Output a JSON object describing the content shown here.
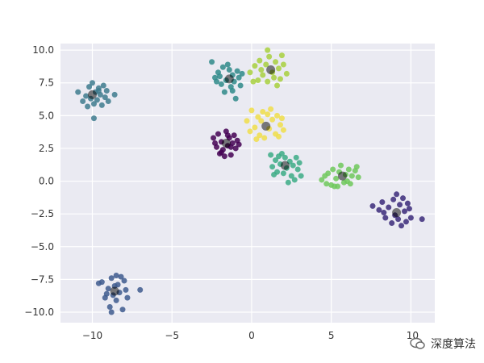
{
  "chart_data": {
    "type": "scatter",
    "title": "",
    "xlabel": "",
    "ylabel": "",
    "xlim": [
      -12,
      11.5
    ],
    "ylim": [
      -10.8,
      10.5
    ],
    "grid": true,
    "x_ticks": [
      -10,
      -5,
      0,
      5,
      10
    ],
    "y_ticks": [
      -10.0,
      -7.5,
      -5.0,
      -2.5,
      0.0,
      2.5,
      5.0,
      7.5,
      10.0
    ],
    "x_tick_labels": [
      "−10",
      "−5",
      "0",
      "5",
      "10"
    ],
    "y_tick_labels": [
      "−10.0",
      "−7.5",
      "−5.0",
      "−2.5",
      "0.0",
      "2.5",
      "5.0",
      "7.5",
      "10.0"
    ],
    "colors": {
      "background": "#eaeaf2",
      "grid": "#ffffff",
      "center": "#000000"
    },
    "clusters": [
      {
        "center": [
          -10.0,
          6.6
        ],
        "color": "#3e7b8e",
        "points": [
          [
            -10.9,
            6.8
          ],
          [
            -10.6,
            6.1
          ],
          [
            -10.4,
            6.5
          ],
          [
            -10.2,
            7.2
          ],
          [
            -10.1,
            6.3
          ],
          [
            -10.0,
            7.5
          ],
          [
            -9.9,
            5.9
          ],
          [
            -9.8,
            6.8
          ],
          [
            -9.7,
            6.2
          ],
          [
            -9.6,
            7.1
          ],
          [
            -9.5,
            6.6
          ],
          [
            -9.4,
            5.8
          ],
          [
            -9.3,
            7.3
          ],
          [
            -9.2,
            6.4
          ],
          [
            -9.1,
            6.9
          ],
          [
            -9.0,
            6.1
          ],
          [
            -9.9,
            4.8
          ],
          [
            -8.6,
            6.6
          ],
          [
            -10.3,
            5.7
          ],
          [
            -9.6,
            6.9
          ]
        ]
      },
      {
        "center": [
          -8.6,
          -8.4
        ],
        "color": "#3e5a8e",
        "points": [
          [
            -9.4,
            -7.7
          ],
          [
            -9.2,
            -8.9
          ],
          [
            -9.0,
            -8.2
          ],
          [
            -8.9,
            -9.6
          ],
          [
            -8.8,
            -7.4
          ],
          [
            -8.7,
            -8.7
          ],
          [
            -8.5,
            -9.1
          ],
          [
            -8.4,
            -7.9
          ],
          [
            -8.3,
            -8.5
          ],
          [
            -8.1,
            -9.8
          ],
          [
            -8.0,
            -7.6
          ],
          [
            -7.9,
            -8.3
          ],
          [
            -8.6,
            -8.0
          ],
          [
            -9.1,
            -8.6
          ],
          [
            -8.2,
            -7.3
          ],
          [
            -7.0,
            -8.3
          ],
          [
            -9.6,
            -7.8
          ],
          [
            -8.8,
            -10.0
          ],
          [
            -8.5,
            -7.2
          ],
          [
            -7.8,
            -8.9
          ]
        ]
      },
      {
        "center": [
          -1.4,
          7.8
        ],
        "color": "#2f8a8a",
        "points": [
          [
            -2.5,
            9.1
          ],
          [
            -2.3,
            7.9
          ],
          [
            -2.1,
            8.3
          ],
          [
            -1.9,
            7.4
          ],
          [
            -1.8,
            8.7
          ],
          [
            -1.6,
            7.7
          ],
          [
            -1.5,
            8.9
          ],
          [
            -1.3,
            7.2
          ],
          [
            -1.2,
            8.1
          ],
          [
            -1.1,
            7.6
          ],
          [
            -0.9,
            8.4
          ],
          [
            -0.8,
            7.9
          ],
          [
            -1.0,
            6.3
          ],
          [
            -1.7,
            6.8
          ],
          [
            -2.0,
            8.0
          ],
          [
            -1.4,
            8.5
          ],
          [
            -0.7,
            7.3
          ],
          [
            -2.2,
            7.6
          ],
          [
            -1.2,
            6.9
          ],
          [
            -0.6,
            8.2
          ]
        ]
      },
      {
        "center": [
          1.2,
          8.5
        ],
        "color": "#a8d03e",
        "points": [
          [
            -0.1,
            8.3
          ],
          [
            0.2,
            8.8
          ],
          [
            0.4,
            7.7
          ],
          [
            0.5,
            9.2
          ],
          [
            0.7,
            8.1
          ],
          [
            0.9,
            8.9
          ],
          [
            1.0,
            7.6
          ],
          [
            1.1,
            9.5
          ],
          [
            1.3,
            8.3
          ],
          [
            1.4,
            7.9
          ],
          [
            1.5,
            9.1
          ],
          [
            1.7,
            8.6
          ],
          [
            1.8,
            7.8
          ],
          [
            2.0,
            8.9
          ],
          [
            2.2,
            8.2
          ],
          [
            1.0,
            10.0
          ],
          [
            0.6,
            8.5
          ],
          [
            1.9,
            9.6
          ],
          [
            0.1,
            7.6
          ],
          [
            1.6,
            7.3
          ]
        ]
      },
      {
        "center": [
          -1.6,
          2.9
        ],
        "color": "#440154",
        "points": [
          [
            -2.4,
            3.3
          ],
          [
            -2.2,
            2.6
          ],
          [
            -2.1,
            3.6
          ],
          [
            -2.0,
            2.1
          ],
          [
            -1.9,
            3.0
          ],
          [
            -1.8,
            2.4
          ],
          [
            -1.6,
            3.8
          ],
          [
            -1.5,
            2.7
          ],
          [
            -1.4,
            3.3
          ],
          [
            -1.3,
            2.0
          ],
          [
            -1.2,
            2.9
          ],
          [
            -1.1,
            3.5
          ],
          [
            -1.0,
            2.5
          ],
          [
            -0.9,
            3.1
          ],
          [
            -1.7,
            1.9
          ],
          [
            -2.3,
            2.9
          ],
          [
            -1.5,
            3.5
          ],
          [
            -0.8,
            2.8
          ],
          [
            -1.9,
            2.2
          ],
          [
            -1.3,
            2.6
          ]
        ]
      },
      {
        "center": [
          0.9,
          4.2
        ],
        "color": "#f0de4a",
        "points": [
          [
            -0.3,
            4.6
          ],
          [
            -0.1,
            3.8
          ],
          [
            0.0,
            5.4
          ],
          [
            0.2,
            4.1
          ],
          [
            0.4,
            4.9
          ],
          [
            0.5,
            3.5
          ],
          [
            0.6,
            4.6
          ],
          [
            0.8,
            3.3
          ],
          [
            1.0,
            5.1
          ],
          [
            1.1,
            4.0
          ],
          [
            1.3,
            4.7
          ],
          [
            1.5,
            3.6
          ],
          [
            1.6,
            5.0
          ],
          [
            1.8,
            4.3
          ],
          [
            2.0,
            3.9
          ],
          [
            1.2,
            5.5
          ],
          [
            0.3,
            3.2
          ],
          [
            1.7,
            3.4
          ],
          [
            0.7,
            5.3
          ],
          [
            1.9,
            4.8
          ]
        ]
      },
      {
        "center": [
          2.1,
          1.2
        ],
        "color": "#3cab86",
        "points": [
          [
            1.2,
            2.0
          ],
          [
            1.3,
            1.1
          ],
          [
            1.5,
            1.6
          ],
          [
            1.6,
            0.7
          ],
          [
            1.7,
            1.9
          ],
          [
            1.8,
            1.3
          ],
          [
            2.0,
            0.6
          ],
          [
            2.1,
            1.8
          ],
          [
            2.2,
            1.0
          ],
          [
            2.4,
            1.5
          ],
          [
            2.5,
            0.4
          ],
          [
            2.6,
            1.2
          ],
          [
            2.8,
            1.8
          ],
          [
            2.9,
            0.9
          ],
          [
            3.0,
            1.4
          ],
          [
            2.3,
            -0.1
          ],
          [
            3.1,
            0.4
          ],
          [
            1.9,
            2.1
          ],
          [
            2.7,
            0.1
          ],
          [
            1.4,
            0.5
          ]
        ]
      },
      {
        "center": [
          5.7,
          0.4
        ],
        "color": "#6ec85c",
        "points": [
          [
            4.4,
            0.1
          ],
          [
            4.7,
            -0.2
          ],
          [
            4.8,
            0.6
          ],
          [
            5.0,
            -0.3
          ],
          [
            5.1,
            0.9
          ],
          [
            5.3,
            0.2
          ],
          [
            5.4,
            -0.4
          ],
          [
            5.5,
            0.7
          ],
          [
            5.6,
            1.2
          ],
          [
            5.8,
            -0.1
          ],
          [
            5.9,
            0.5
          ],
          [
            6.1,
            0.9
          ],
          [
            6.2,
            -0.2
          ],
          [
            6.3,
            0.4
          ],
          [
            6.5,
            0.8
          ],
          [
            6.6,
            1.1
          ],
          [
            6.7,
            0.3
          ],
          [
            5.2,
            -0.4
          ],
          [
            4.6,
            0.4
          ],
          [
            6.0,
            0.0
          ]
        ]
      },
      {
        "center": [
          9.1,
          -2.4
        ],
        "color": "#3b2a7a",
        "points": [
          [
            7.6,
            -1.9
          ],
          [
            8.0,
            -2.2
          ],
          [
            8.2,
            -1.6
          ],
          [
            8.4,
            -2.8
          ],
          [
            8.6,
            -2.0
          ],
          [
            8.8,
            -3.2
          ],
          [
            8.9,
            -1.4
          ],
          [
            9.0,
            -2.6
          ],
          [
            9.1,
            -1.0
          ],
          [
            9.2,
            -2.9
          ],
          [
            9.3,
            -1.8
          ],
          [
            9.4,
            -3.4
          ],
          [
            9.6,
            -2.3
          ],
          [
            9.8,
            -1.7
          ],
          [
            10.0,
            -2.8
          ],
          [
            10.7,
            -2.9
          ],
          [
            9.7,
            -3.1
          ],
          [
            8.3,
            -2.4
          ],
          [
            9.5,
            -1.3
          ],
          [
            9.9,
            -2.1
          ]
        ]
      }
    ]
  },
  "watermark": {
    "text": "深度算法",
    "icon": "chat-bubble-icon",
    "partial_tick": "10"
  }
}
